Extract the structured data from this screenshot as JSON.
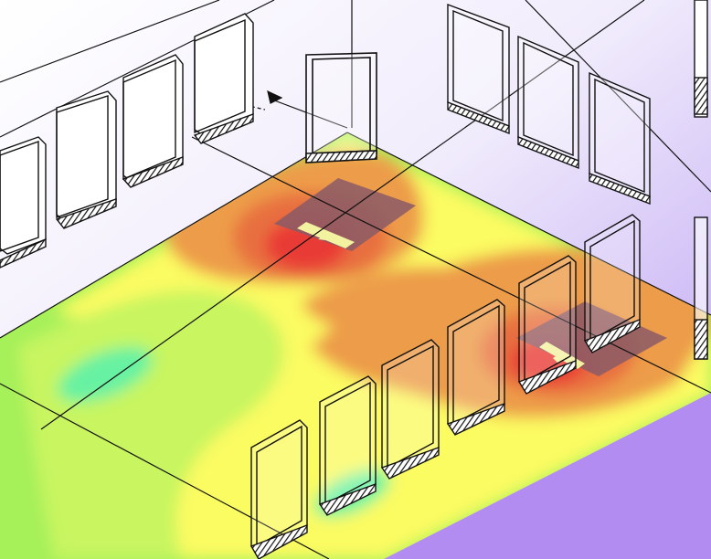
{
  "scene": {
    "type": "isometric-room-heatmap",
    "colors": {
      "room_wall_top": "#ffffff",
      "room_wall_bottom": "#b79bf2",
      "floor_green": "#a6f05a",
      "floor_light_green": "#c8f560",
      "floor_cyan": "#66f2a2",
      "floor_yellow": "#fbfb62",
      "floor_orange": "#ed9c4a",
      "floor_red_orange": "#e87040",
      "floor_red": "#e93b36",
      "fixture_shadow": "#8a5a66",
      "fixture_bar": "#f3f2a0",
      "line": "#111111",
      "scale_bar_fill": "#ffffff"
    }
  }
}
